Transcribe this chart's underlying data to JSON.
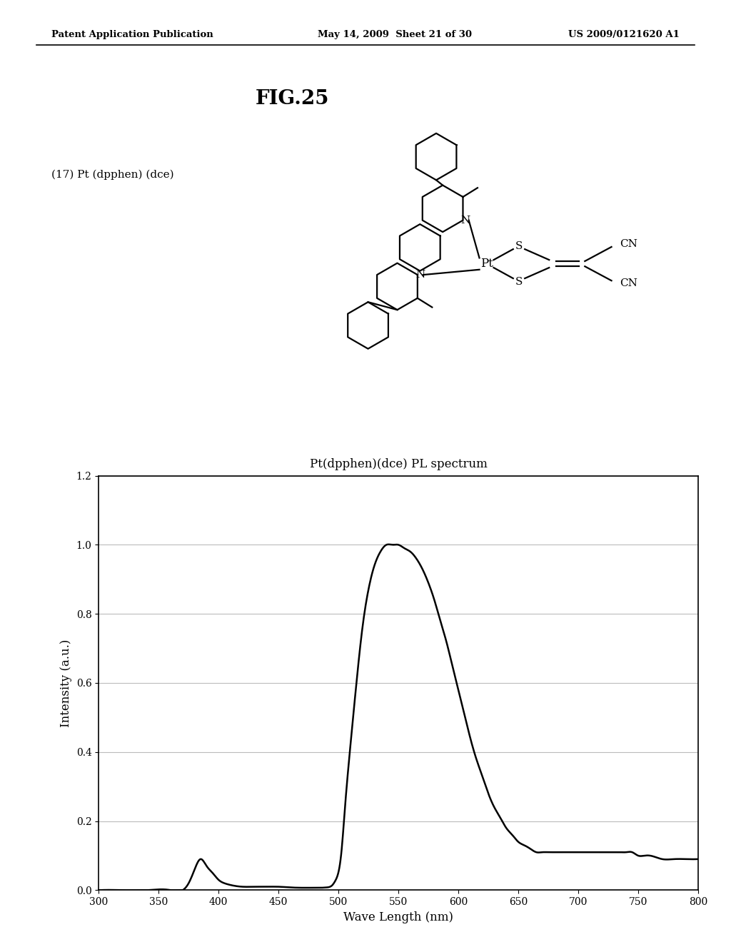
{
  "header_left": "Patent Application Publication",
  "header_mid": "May 14, 2009  Sheet 21 of 30",
  "header_right": "US 2009/0121620 A1",
  "fig_label": "FIG.25",
  "compound_label": "(17) Pt (dpphen) (dce)",
  "chart_title": "Pt(dpphen)(dce) PL spectrum",
  "xlabel": "Wave Length (nm)",
  "ylabel": "Intensity (a.u.)",
  "xlim": [
    300,
    800
  ],
  "ylim": [
    0.0,
    1.2
  ],
  "xticks": [
    300,
    350,
    400,
    450,
    500,
    550,
    600,
    650,
    700,
    750,
    800
  ],
  "yticks": [
    0.0,
    0.2,
    0.4,
    0.6,
    0.8,
    1.0,
    1.2
  ],
  "background_color": "#ffffff",
  "line_color": "#000000",
  "spectrum_x": [
    300,
    320,
    340,
    360,
    370,
    375,
    380,
    385,
    390,
    395,
    400,
    405,
    410,
    420,
    430,
    440,
    450,
    460,
    470,
    475,
    480,
    485,
    490,
    493,
    495,
    497,
    499,
    501,
    503,
    505,
    510,
    515,
    520,
    525,
    530,
    535,
    540,
    545,
    550,
    555,
    560,
    565,
    570,
    575,
    580,
    585,
    590,
    595,
    600,
    605,
    610,
    615,
    620,
    625,
    630,
    635,
    640,
    645,
    650,
    655,
    660,
    665,
    670,
    675,
    680,
    685,
    690,
    695,
    700,
    705,
    710,
    715,
    720,
    725,
    730,
    735,
    740,
    745,
    750,
    755,
    760,
    770,
    780,
    790,
    800
  ],
  "spectrum_y": [
    0.0,
    0.0,
    0.0,
    0.0,
    0.0,
    0.02,
    0.06,
    0.09,
    0.07,
    0.05,
    0.03,
    0.02,
    0.015,
    0.01,
    0.01,
    0.01,
    0.01,
    0.008,
    0.007,
    0.007,
    0.007,
    0.007,
    0.008,
    0.01,
    0.015,
    0.025,
    0.04,
    0.07,
    0.13,
    0.22,
    0.42,
    0.6,
    0.76,
    0.87,
    0.94,
    0.98,
    1.0,
    1.0,
    1.0,
    0.99,
    0.98,
    0.96,
    0.93,
    0.89,
    0.84,
    0.78,
    0.72,
    0.65,
    0.58,
    0.51,
    0.44,
    0.38,
    0.33,
    0.28,
    0.24,
    0.21,
    0.18,
    0.16,
    0.14,
    0.13,
    0.12,
    0.11,
    0.11,
    0.11,
    0.11,
    0.11,
    0.11,
    0.11,
    0.11,
    0.11,
    0.11,
    0.11,
    0.11,
    0.11,
    0.11,
    0.11,
    0.11,
    0.11,
    0.1,
    0.1,
    0.1,
    0.09,
    0.09,
    0.09,
    0.09
  ]
}
